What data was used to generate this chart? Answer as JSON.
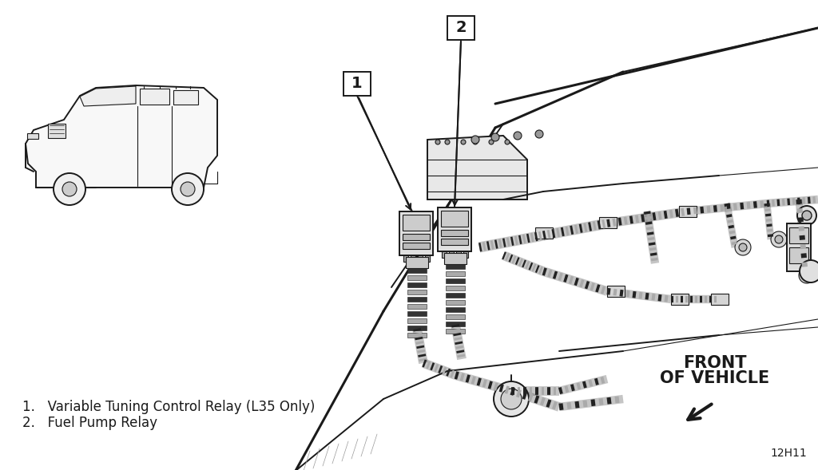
{
  "background_color": "#ffffff",
  "line_color": "#1a1a1a",
  "label1": "1",
  "label2": "2",
  "legend1": "1.   Variable Tuning Control Relay (L35 Only)",
  "legend2": "2.   Fuel Pump Relay",
  "front_line1": "FRONT",
  "front_line2": "OF VEHICLE",
  "diagram_code": "12H11",
  "fig_width": 10.24,
  "fig_height": 5.89,
  "dpi": 100,
  "lw_thin": 0.8,
  "lw_med": 1.4,
  "lw_thick": 2.2
}
